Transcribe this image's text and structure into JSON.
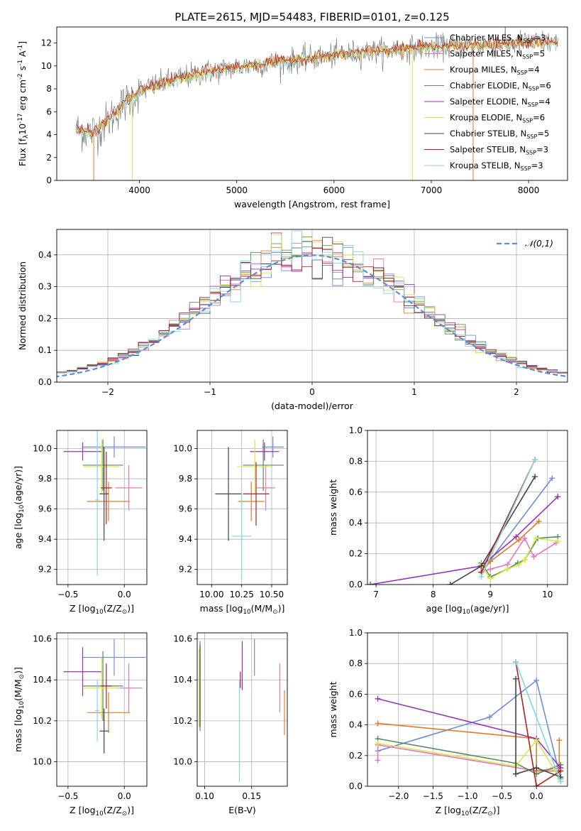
{
  "figure": {
    "title": "PLATE=2615, MJD=54483, FIBERID=0101, z=0.125"
  },
  "colors": {
    "Chabrier MILES": "#6b8fd6",
    "Salpeter MILES": "#e377c2",
    "Kroupa MILES": "#e07b2a",
    "Chabrier ELODIE": "#5a8a5a",
    "Salpeter ELODIE": "#9b30b8",
    "Kroupa ELODIE": "#d6e84a",
    "Chabrier STELIB": "#444444",
    "Salpeter STELIB": "#b02020",
    "Kroupa STELIB": "#7fd8e0",
    "data": "#808080",
    "gaussian": "#5b8ed6"
  },
  "chart_data": [
    {
      "type": "line",
      "id": "spectrum",
      "xlabel": "wavelength [Angstrom, rest frame]",
      "ylabel": "Flux [f$_\\lambda$10$^{-17}$ erg cm$^{-2}$ s$^{-1}$ A$^{-1}$]",
      "xlim": [
        3150,
        8400
      ],
      "ylim": [
        0,
        13.4
      ],
      "xticks": [
        4000,
        5000,
        6000,
        7000,
        8000
      ],
      "yticks": [
        0,
        2,
        4,
        6,
        8,
        10,
        12
      ],
      "grid": false,
      "legend_position": "right",
      "legend": [
        {
          "label": "Chabrier MILES, N$_{SSP}$=3",
          "key": "Chabrier MILES"
        },
        {
          "label": "Salpeter MILES, N$_{SSP}$=5",
          "key": "Salpeter MILES"
        },
        {
          "label": "Kroupa MILES, N$_{SSP}$=4",
          "key": "Kroupa MILES"
        },
        {
          "label": "Chabrier ELODIE, N$_{SSP}$=6",
          "key": "Chabrier ELODIE"
        },
        {
          "label": "Salpeter ELODIE, N$_{SSP}$=4",
          "key": "Salpeter ELODIE"
        },
        {
          "label": "Kroupa ELODIE, N$_{SSP}$=6",
          "key": "Kroupa ELODIE"
        },
        {
          "label": "Chabrier STELIB, N$_{SSP}$=5",
          "key": "Chabrier STELIB"
        },
        {
          "label": "Salpeter STELIB, N$_{SSP}$=3",
          "key": "Salpeter STELIB"
        },
        {
          "label": "Kroupa STELIB, N$_{SSP}$=3",
          "key": "Kroupa STELIB"
        }
      ],
      "continuum": {
        "wavelength": [
          3350,
          3500,
          3600,
          3700,
          3800,
          3900,
          4000,
          4200,
          4400,
          4600,
          4800,
          5000,
          5200,
          5500,
          5800,
          6000,
          6300,
          6600,
          6900,
          7200,
          7500,
          8000,
          8300
        ],
        "flux": [
          4.4,
          4.2,
          4.6,
          5.4,
          6.4,
          7.1,
          7.8,
          8.4,
          8.9,
          9.3,
          9.6,
          9.9,
          10.1,
          10.4,
          10.7,
          10.9,
          11.2,
          11.4,
          11.6,
          11.7,
          11.8,
          12.0,
          12.1
        ]
      },
      "drops": [
        {
          "wavelength": 3530,
          "to": 0.0,
          "model": "Kroupa MILES"
        },
        {
          "wavelength": 3925,
          "to": 0.0,
          "model": "Kroupa ELODIE"
        },
        {
          "wavelength": 6805,
          "to": 0.0,
          "model": "Kroupa ELODIE"
        },
        {
          "wavelength": 7430,
          "to": 0.0,
          "model": "Kroupa MILES"
        }
      ]
    },
    {
      "type": "line",
      "id": "residuals",
      "xlabel": "(data-model)/error",
      "ylabel": "Normed distribution",
      "xlim": [
        -2.5,
        2.5
      ],
      "ylim": [
        0,
        0.48
      ],
      "xticks": [
        -2,
        -1,
        0,
        1,
        2
      ],
      "yticks": [
        0.0,
        0.1,
        0.2,
        0.3,
        0.4
      ],
      "grid": true,
      "legend_position": "top-right",
      "legend": [
        {
          "label": "$\\mathcal{N}(0,1)$",
          "key": "gaussian"
        }
      ],
      "bin_width": 0.1
    },
    {
      "type": "scatter",
      "id": "age-vs-Z",
      "xlabel": "Z [log$_{10}$(Z/Z$_\\odot$)]",
      "ylabel": "age  [log$_{10}$(age/yr)]",
      "xlim": [
        -0.6,
        0.2
      ],
      "ylim": [
        9.1,
        10.12
      ],
      "xticks": [
        -0.5,
        0.0
      ],
      "yticks": [
        9.2,
        9.4,
        9.6,
        9.8,
        10.0
      ],
      "grid": true,
      "points": [
        {
          "model": "Chabrier MILES",
          "x": -0.09,
          "xerr": 0.28,
          "y": 10.01,
          "yerr": 0.07
        },
        {
          "model": "Salpeter MILES",
          "x": 0.04,
          "xerr": 0.12,
          "y": 9.74,
          "yerr": 0.15
        },
        {
          "model": "Kroupa MILES",
          "x": -0.14,
          "xerr": 0.19,
          "y": 9.65,
          "yerr": 0.13
        },
        {
          "model": "Chabrier ELODIE",
          "x": -0.19,
          "xerr": 0.18,
          "y": 9.89,
          "yerr": 0.17
        },
        {
          "model": "Salpeter ELODIE",
          "x": -0.37,
          "xerr": 0.17,
          "y": 9.98,
          "yerr": 0.06
        },
        {
          "model": "Kroupa ELODIE",
          "x": -0.2,
          "xerr": 0.16,
          "y": 9.88,
          "yerr": 0.18
        },
        {
          "model": "Chabrier STELIB",
          "x": -0.18,
          "xerr": 0.04,
          "y": 9.7,
          "yerr": 0.31
        },
        {
          "model": "Salpeter STELIB",
          "x": -0.16,
          "xerr": 0.05,
          "y": 9.74,
          "yerr": 0.24
        },
        {
          "model": "Kroupa STELIB",
          "x": -0.24,
          "xerr": 0.02,
          "y": 9.66,
          "yerr": 0.5
        }
      ]
    },
    {
      "type": "scatter",
      "id": "age-vs-mass",
      "xlabel": "mass [log$_{10}$(M/M$_\\odot$)]",
      "ylabel": "",
      "xlim": [
        9.88,
        10.63
      ],
      "ylim": [
        9.1,
        10.12
      ],
      "xticks": [
        10.0,
        10.25,
        10.5
      ],
      "xticklabels": [
        "10.00",
        "10.25",
        "10.50"
      ],
      "yticks": [
        9.2,
        9.4,
        9.6,
        9.8,
        10.0
      ],
      "grid": true,
      "points": [
        {
          "model": "Chabrier MILES",
          "x": 10.51,
          "xerr": 0.09,
          "y": 10.01,
          "yerr": 0.07
        },
        {
          "model": "Salpeter MILES",
          "x": 10.45,
          "xerr": 0.08,
          "y": 9.74,
          "yerr": 0.15
        },
        {
          "model": "Kroupa MILES",
          "x": 10.33,
          "xerr": 0.11,
          "y": 9.65,
          "yerr": 0.13
        },
        {
          "model": "Chabrier ELODIE",
          "x": 10.43,
          "xerr": 0.17,
          "y": 9.89,
          "yerr": 0.17
        },
        {
          "model": "Salpeter ELODIE",
          "x": 10.44,
          "xerr": 0.12,
          "y": 9.98,
          "yerr": 0.06
        },
        {
          "model": "Kroupa ELODIE",
          "x": 10.36,
          "xerr": 0.15,
          "y": 9.88,
          "yerr": 0.18
        },
        {
          "model": "Chabrier STELIB",
          "x": 10.14,
          "xerr": 0.11,
          "y": 9.7,
          "yerr": 0.31
        },
        {
          "model": "Salpeter STELIB",
          "x": 10.37,
          "xerr": 0.11,
          "y": 9.7,
          "yerr": 0.21
        },
        {
          "model": "Kroupa STELIB",
          "x": 10.25,
          "xerr": 0.08,
          "y": 9.42,
          "yerr": 0.28
        }
      ]
    },
    {
      "type": "line",
      "id": "weight-vs-age",
      "xlabel": "age  [log$_{10}$(age/yr)]",
      "ylabel": "mass weight",
      "xlim": [
        6.85,
        10.35
      ],
      "ylim": [
        0,
        1.0
      ],
      "xticks": [
        7,
        8,
        9,
        10
      ],
      "yticks": [
        0.0,
        0.2,
        0.4,
        0.6,
        0.8,
        1.0
      ],
      "grid": true,
      "series": [
        {
          "model": "Chabrier MILES",
          "x": [
            8.84,
            10.08
          ],
          "y": [
            0.08,
            0.69
          ]
        },
        {
          "model": "Salpeter MILES",
          "x": [
            8.84,
            9.0,
            9.3,
            9.6,
            9.76,
            10.15
          ],
          "y": [
            0.08,
            0.1,
            0.13,
            0.3,
            0.18,
            0.27
          ]
        },
        {
          "model": "Kroupa MILES",
          "x": [
            8.84,
            9.0,
            9.5,
            9.85
          ],
          "y": [
            0.08,
            0.15,
            0.29,
            0.41
          ]
        },
        {
          "model": "Chabrier ELODIE",
          "x": [
            8.84,
            9.0,
            9.3,
            9.48,
            9.6,
            9.83,
            10.18
          ],
          "y": [
            0.14,
            0.05,
            0.1,
            0.14,
            0.16,
            0.3,
            0.31
          ]
        },
        {
          "model": "Salpeter ELODIE",
          "x": [
            6.9,
            8.84,
            9.45,
            10.18
          ],
          "y": [
            0.0,
            0.12,
            0.31,
            0.57
          ]
        },
        {
          "model": "Kroupa ELODIE",
          "x": [
            8.84,
            9.0,
            9.3,
            9.5,
            9.6,
            9.8,
            10.18
          ],
          "y": [
            0.13,
            0.04,
            0.1,
            0.13,
            0.16,
            0.3,
            0.28
          ]
        },
        {
          "model": "Chabrier STELIB",
          "x": [
            8.3,
            8.84,
            9.78
          ],
          "y": [
            0.0,
            0.12,
            0.7
          ]
        },
        {
          "model": "Salpeter STELIB",
          "x": [
            8.84,
            9.78
          ],
          "y": [
            0.08,
            0.81
          ]
        },
        {
          "model": "Kroupa STELIB",
          "x": [
            8.84,
            9.78
          ],
          "y": [
            0.05,
            0.81
          ]
        }
      ]
    },
    {
      "type": "scatter",
      "id": "mass-vs-Z",
      "xlabel": "Z [log$_{10}$(Z/Z$_\\odot$)]",
      "ylabel": "mass [log$_{10}$(M/M$_\\odot$)]",
      "xlim": [
        -0.6,
        0.2
      ],
      "ylim": [
        9.88,
        10.63
      ],
      "xticks": [
        -0.5,
        0.0
      ],
      "yticks": [
        10.0,
        10.2,
        10.4,
        10.6
      ],
      "grid": true,
      "points": [
        {
          "model": "Chabrier MILES",
          "x": -0.09,
          "xerr": 0.28,
          "y": 10.51,
          "yerr": 0.09
        },
        {
          "model": "Salpeter MILES",
          "x": 0.04,
          "xerr": 0.12,
          "y": 10.36,
          "yerr": 0.12
        },
        {
          "model": "Kroupa MILES",
          "x": -0.14,
          "xerr": 0.19,
          "y": 10.24,
          "yerr": 0.1
        },
        {
          "model": "Chabrier ELODIE",
          "x": -0.19,
          "xerr": 0.18,
          "y": 10.37,
          "yerr": 0.17
        },
        {
          "model": "Salpeter ELODIE",
          "x": -0.37,
          "xerr": 0.17,
          "y": 10.44,
          "yerr": 0.12
        },
        {
          "model": "Kroupa ELODIE",
          "x": -0.2,
          "xerr": 0.16,
          "y": 10.36,
          "yerr": 0.15
        },
        {
          "model": "Chabrier STELIB",
          "x": -0.18,
          "xerr": 0.04,
          "y": 10.15,
          "yerr": 0.11
        },
        {
          "model": "Salpeter STELIB",
          "x": -0.16,
          "xerr": 0.05,
          "y": 10.37,
          "yerr": 0.11
        },
        {
          "model": "Kroupa STELIB",
          "x": -0.24,
          "xerr": 0.02,
          "y": 10.25,
          "yerr": 0.15
        }
      ]
    },
    {
      "type": "scatter",
      "id": "mass-vs-EBV",
      "xlabel": "E(B-V)",
      "ylabel": "",
      "xlim": [
        0.092,
        0.188
      ],
      "ylim": [
        9.88,
        10.63
      ],
      "xticks": [
        0.1,
        0.15
      ],
      "xticklabels": [
        "0.10",
        "0.15"
      ],
      "yticks": [
        10.0,
        10.2,
        10.4,
        10.6
      ],
      "grid": true,
      "points": [
        {
          "model": "Chabrier MILES",
          "x": 0.153,
          "y": 10.51,
          "yerr": 0.09
        },
        {
          "model": "Salpeter MILES",
          "x": 0.18,
          "y": 10.36,
          "yerr": 0.12
        },
        {
          "model": "Kroupa MILES",
          "x": 0.185,
          "y": 10.24,
          "yerr": 0.11
        },
        {
          "model": "Chabrier ELODIE",
          "x": 0.095,
          "y": 10.37,
          "yerr": 0.22
        },
        {
          "model": "Salpeter ELODIE",
          "x": 0.14,
          "y": 10.47,
          "yerr": 0.12
        },
        {
          "model": "Kroupa ELODIE",
          "x": 0.094,
          "y": 10.36,
          "yerr": 0.19
        },
        {
          "model": "Chabrier STELIB",
          "x": 0.095,
          "y": 10.37,
          "yerr": 0.2
        },
        {
          "model": "Salpeter STELIB",
          "x": 0.138,
          "y": 10.4,
          "yerr": 0.04
        },
        {
          "model": "Kroupa STELIB",
          "x": 0.137,
          "y": 10.15,
          "yerr": 0.25
        }
      ]
    },
    {
      "type": "line",
      "id": "weight-vs-Z",
      "xlabel": "Z [log$_{10}$(Z/Z$_\\odot$)]",
      "ylabel": "mass weight",
      "xlim": [
        -2.45,
        0.45
      ],
      "ylim": [
        0,
        1.0
      ],
      "xticks": [
        -2.0,
        -1.5,
        -1.0,
        -0.5,
        0.0
      ],
      "xticklabels": [
        "−2.0",
        "−1.5",
        "−1.0",
        "−0.5",
        "0.0"
      ],
      "yticks": [
        0.0,
        0.2,
        0.4,
        0.6,
        0.8,
        1.0
      ],
      "grid": true,
      "series": [
        {
          "model": "Chabrier MILES",
          "x": [
            -2.3,
            -0.68,
            0.0,
            0.35
          ],
          "y": [
            0.23,
            0.45,
            0.69,
            0.05
          ]
        },
        {
          "model": "Salpeter MILES",
          "x": [
            -2.3,
            -2.3,
            0.0,
            0.35
          ],
          "y": [
            0.17,
            0.27,
            0.1,
            0.12
          ]
        },
        {
          "model": "Kroupa MILES",
          "x": [
            -2.3,
            0.0,
            0.0,
            0.33,
            0.33
          ],
          "y": [
            0.41,
            0.31,
            0.1,
            0.1,
            0.3
          ]
        },
        {
          "model": "Chabrier ELODIE",
          "x": [
            -2.3,
            -0.3,
            0.0,
            0.35
          ],
          "y": [
            0.31,
            0.15,
            0.08,
            0.14
          ]
        },
        {
          "model": "Salpeter ELODIE",
          "x": [
            -2.3,
            0.0,
            0.35
          ],
          "y": [
            0.57,
            0.31,
            0.12
          ]
        },
        {
          "model": "Kroupa ELODIE",
          "x": [
            -2.3,
            -0.3,
            0.0,
            0.35
          ],
          "y": [
            0.28,
            0.13,
            0.3,
            0.04
          ]
        },
        {
          "model": "Chabrier STELIB",
          "x": [
            -0.3,
            -0.3,
            0.0,
            0.35
          ],
          "y": [
            0.7,
            0.08,
            0.12,
            0.06
          ]
        },
        {
          "model": "Salpeter STELIB",
          "x": [
            -0.3,
            0.0,
            0.35
          ],
          "y": [
            0.81,
            0.0,
            0.1
          ]
        },
        {
          "model": "Kroupa STELIB",
          "x": [
            -0.3,
            0.35
          ],
          "y": [
            0.81,
            0.03
          ]
        }
      ]
    }
  ]
}
